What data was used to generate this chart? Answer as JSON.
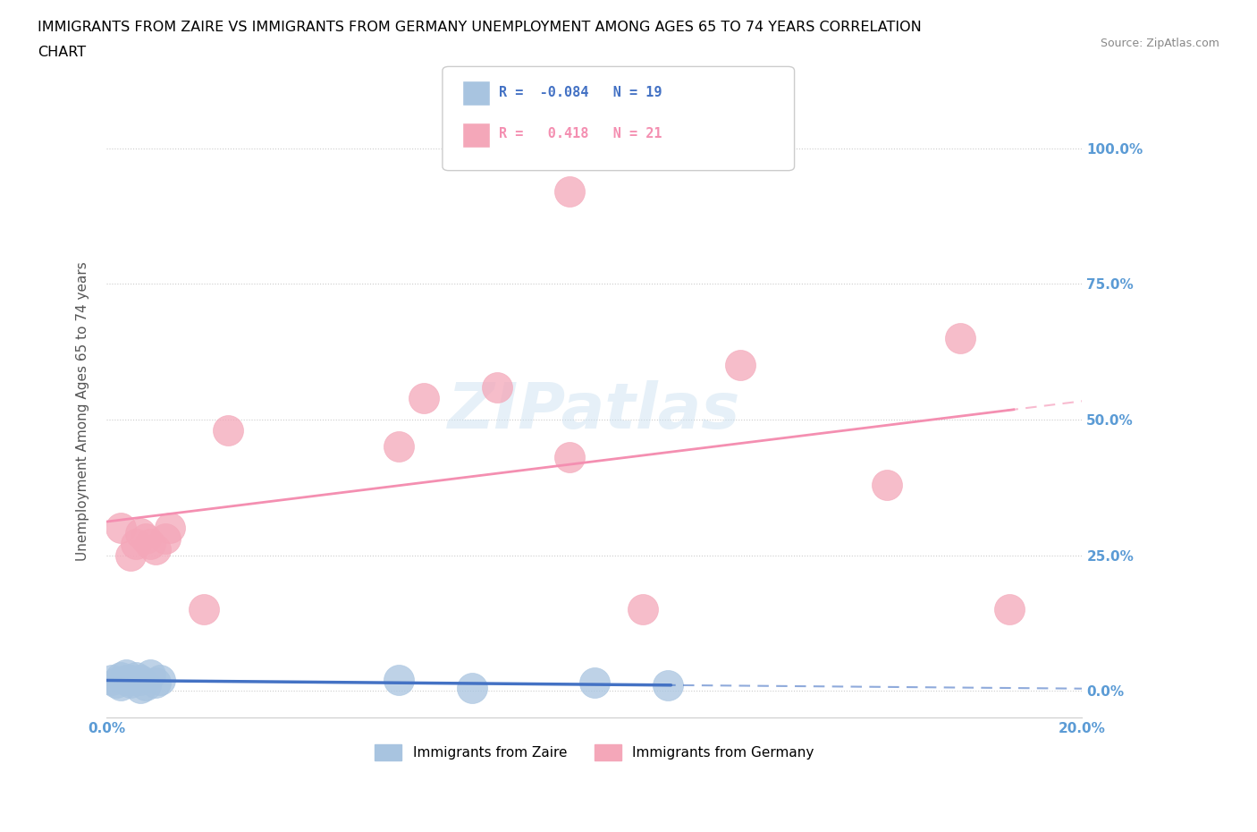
{
  "title_line1": "IMMIGRANTS FROM ZAIRE VS IMMIGRANTS FROM GERMANY UNEMPLOYMENT AMONG AGES 65 TO 74 YEARS CORRELATION",
  "title_line2": "CHART",
  "source": "Source: ZipAtlas.com",
  "ylabel": "Unemployment Among Ages 65 to 74 years",
  "x_min": 0.0,
  "x_max": 0.2,
  "y_min": -0.05,
  "y_max": 1.08,
  "yticks": [
    0.0,
    0.25,
    0.5,
    0.75,
    1.0
  ],
  "ytick_labels": [
    "0.0%",
    "25.0%",
    "50.0%",
    "75.0%",
    "100.0%"
  ],
  "xticks": [
    0.0,
    0.05,
    0.1,
    0.15,
    0.2
  ],
  "xtick_labels": [
    "0.0%",
    "",
    "",
    "",
    "20.0%"
  ],
  "zaire_color": "#a8c4e0",
  "germany_color": "#f4a7b9",
  "zaire_line_color": "#4472c4",
  "germany_line_color": "#f48fb1",
  "legend_label_zaire": "Immigrants from Zaire",
  "legend_label_germany": "Immigrants from Germany",
  "R_zaire": -0.084,
  "N_zaire": 19,
  "R_germany": 0.418,
  "N_germany": 21,
  "zaire_x": [
    0.001,
    0.002,
    0.003,
    0.003,
    0.004,
    0.004,
    0.005,
    0.005,
    0.006,
    0.007,
    0.007,
    0.008,
    0.009,
    0.01,
    0.011,
    0.06,
    0.075,
    0.1,
    0.115
  ],
  "zaire_y": [
    0.02,
    0.015,
    0.025,
    0.01,
    0.02,
    0.03,
    0.015,
    0.02,
    0.025,
    0.005,
    0.02,
    0.01,
    0.03,
    0.015,
    0.02,
    0.02,
    0.005,
    0.015,
    0.01
  ],
  "germany_x": [
    0.003,
    0.005,
    0.006,
    0.007,
    0.008,
    0.009,
    0.01,
    0.012,
    0.013,
    0.02,
    0.025,
    0.06,
    0.065,
    0.08,
    0.095,
    0.11,
    0.13,
    0.16,
    0.175,
    0.185,
    0.095
  ],
  "germany_y": [
    0.3,
    0.25,
    0.27,
    0.29,
    0.28,
    0.27,
    0.26,
    0.28,
    0.3,
    0.15,
    0.48,
    0.45,
    0.54,
    0.56,
    0.43,
    0.15,
    0.6,
    0.38,
    0.65,
    0.15,
    0.92
  ],
  "watermark": "ZIPatlas",
  "background_color": "#ffffff",
  "grid_color": "#cccccc",
  "tick_label_color": "#5b9bd5",
  "title_color": "#000000"
}
